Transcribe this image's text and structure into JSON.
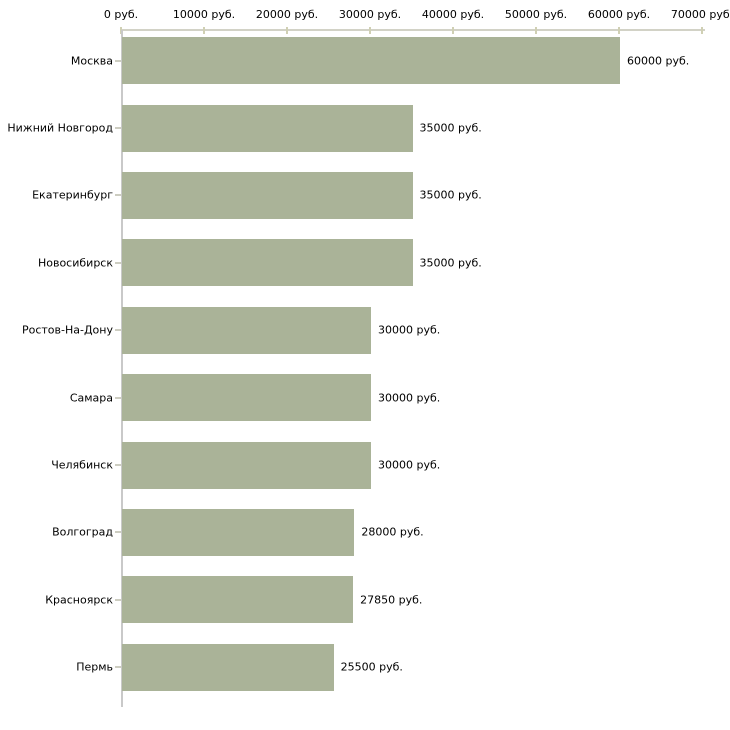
{
  "chart_data": {
    "type": "bar",
    "orientation": "horizontal",
    "title": "",
    "xlabel": "",
    "ylabel": "",
    "unit": "руб.",
    "categories": [
      "Москва",
      "Нижний Новгород",
      "Екатеринбург",
      "Новосибирск",
      "Ростов-На-Дону",
      "Самара",
      "Челябинск",
      "Волгоград",
      "Красноярск",
      "Пермь"
    ],
    "values": [
      60000,
      35000,
      35000,
      35000,
      30000,
      30000,
      30000,
      28000,
      27850,
      25500
    ],
    "value_labels": [
      "60000 руб.",
      "35000 руб.",
      "35000 руб.",
      "35000 руб.",
      "30000 руб.",
      "30000 руб.",
      "30000 руб.",
      "28000 руб.",
      "27850 руб.",
      "25500 руб."
    ],
    "x_tick_values": [
      0,
      10000,
      20000,
      30000,
      40000,
      50000,
      60000,
      70000
    ],
    "x_tick_labels": [
      "0 руб.",
      "10000 руб.",
      "20000 руб.",
      "30000 руб.",
      "40000 руб.",
      "50000 руб.",
      "60000 руб.",
      "70000 руб."
    ],
    "xlim": [
      0,
      70000
    ],
    "grid": false,
    "legend": null,
    "colors": {
      "bar": "#aab398",
      "axis_line": "#d2d2c6",
      "axis_tick": "#d0d0b4",
      "spine": "#c9c9c9",
      "category_tick": "#cdcdc1",
      "text": "#000000",
      "background": "#ffffff"
    }
  }
}
